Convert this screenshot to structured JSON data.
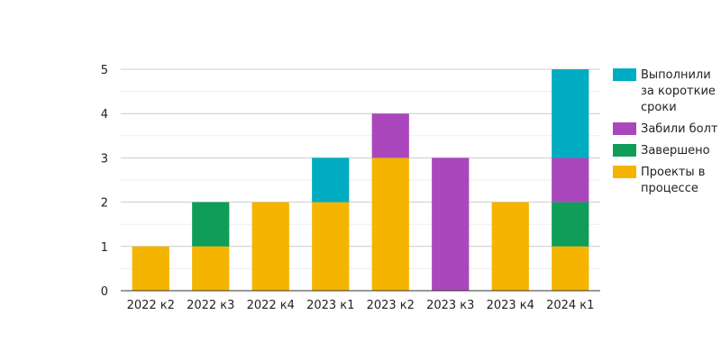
{
  "chart_data": {
    "type": "bar",
    "stacked": true,
    "categories": [
      "2022 к2",
      "2022 к3",
      "2022 к4",
      "2023 к1",
      "2023 к2",
      "2023 к3",
      "2023 к4",
      "2024 к1"
    ],
    "series": [
      {
        "name": "Проекты в процессе",
        "color": "#f4b400",
        "values": [
          1,
          1,
          2,
          2,
          3,
          0,
          2,
          1
        ]
      },
      {
        "name": "Завершено",
        "color": "#0f9d58",
        "values": [
          0,
          1,
          0,
          0,
          0,
          0,
          0,
          1
        ]
      },
      {
        "name": "Забили болт",
        "color": "#ab47bc",
        "values": [
          0,
          0,
          0,
          0,
          1,
          3,
          0,
          1
        ]
      },
      {
        "name": "Выполнили за короткие сроки",
        "color": "#00acc1",
        "values": [
          0,
          0,
          0,
          1,
          0,
          0,
          0,
          2
        ]
      }
    ],
    "ylim": [
      0,
      5
    ],
    "yticks": [
      0,
      1,
      2,
      3,
      4,
      5
    ],
    "grid": true,
    "legend_position": "right",
    "title": "",
    "xlabel": "",
    "ylabel": ""
  }
}
